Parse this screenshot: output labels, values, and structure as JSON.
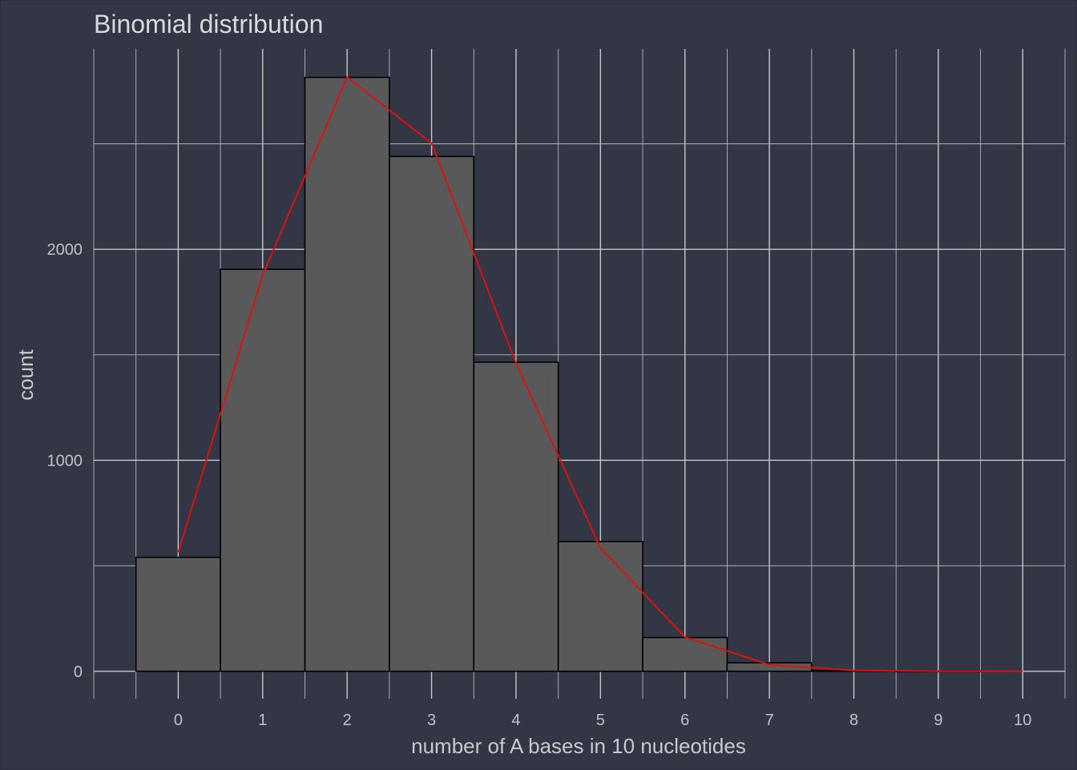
{
  "chart_data": {
    "type": "bar",
    "title": "Binomial distribution",
    "xlabel": "number of A bases in 10 nucleotides",
    "ylabel": "count",
    "x_ticks": [
      "0",
      "1",
      "2",
      "3",
      "4",
      "5",
      "6",
      "7",
      "8",
      "9",
      "10"
    ],
    "y_ticks": [
      "0",
      "1000",
      "2000"
    ],
    "xlim": [
      -1,
      10.5
    ],
    "ylim": [
      -130,
      2950
    ],
    "grid": true,
    "legend": "none",
    "bar_color": "#595959",
    "line_color": "#dd1111",
    "background": "#333645",
    "histogram": {
      "bins": [
        0,
        1,
        2,
        3,
        4,
        5,
        6,
        7,
        8,
        9,
        10
      ],
      "counts": [
        540,
        1905,
        2815,
        2440,
        1465,
        615,
        160,
        40,
        3,
        1,
        0
      ]
    },
    "expected_line": {
      "x": [
        0,
        1,
        2,
        3,
        4,
        5,
        6,
        7,
        8,
        9,
        10
      ],
      "y": [
        563,
        1877,
        2816,
        2503,
        1460,
        584,
        162,
        31,
        4,
        0,
        0
      ]
    }
  }
}
